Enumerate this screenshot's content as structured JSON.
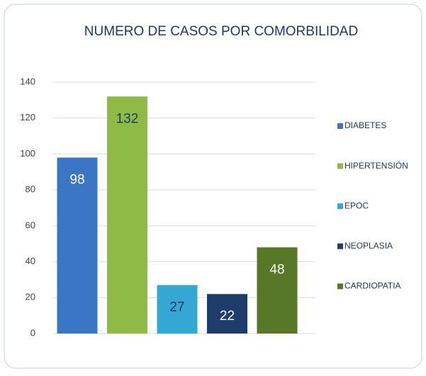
{
  "chart_data": {
    "type": "bar",
    "title": "NUMERO DE CASOS POR COMORBILIDAD",
    "categories": [
      "DIABETES",
      "HIPERTENSIÓN",
      "EPOC",
      "NEOPLASIA",
      "CARDIOPATIA"
    ],
    "values": [
      98,
      132,
      27,
      22,
      48
    ],
    "colors": [
      "#3a76c4",
      "#8dbb45",
      "#34a8d2",
      "#1f3d6b",
      "#577826"
    ],
    "ylim": [
      0,
      140
    ],
    "yticks": [
      0,
      20,
      40,
      60,
      80,
      100,
      120,
      140
    ],
    "grid": true,
    "legend": "right"
  }
}
